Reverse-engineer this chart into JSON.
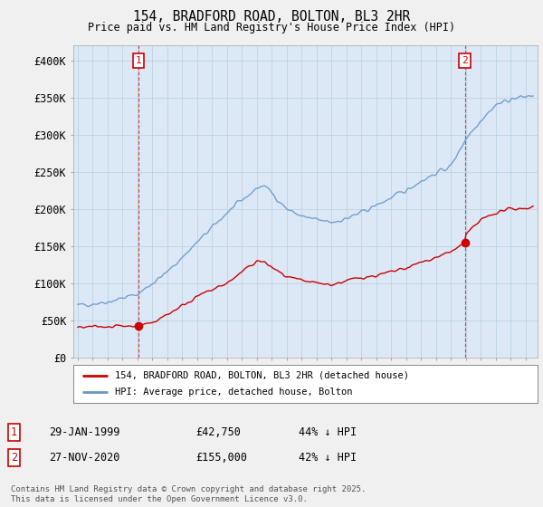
{
  "title1": "154, BRADFORD ROAD, BOLTON, BL3 2HR",
  "title2": "Price paid vs. HM Land Registry's House Price Index (HPI)",
  "ylim": [
    0,
    420000
  ],
  "yticks": [
    0,
    50000,
    100000,
    150000,
    200000,
    250000,
    300000,
    350000,
    400000
  ],
  "ytick_labels": [
    "£0",
    "£50K",
    "£100K",
    "£150K",
    "£200K",
    "£250K",
    "£300K",
    "£350K",
    "£400K"
  ],
  "bg_color": "#f0f0f0",
  "plot_bg_color": "#dce8f5",
  "grid_color": "#b8cfe0",
  "red_color": "#cc0000",
  "blue_color": "#6699cc",
  "marker1_date": 1999.08,
  "marker1_price": 42750,
  "marker2_date": 2020.92,
  "marker2_price": 155000,
  "legend_label_red": "154, BRADFORD ROAD, BOLTON, BL3 2HR (detached house)",
  "legend_label_blue": "HPI: Average price, detached house, Bolton",
  "annotation1_date": "29-JAN-1999",
  "annotation1_price": "£42,750",
  "annotation1_hpi": "44% ↓ HPI",
  "annotation2_date": "27-NOV-2020",
  "annotation2_price": "£155,000",
  "annotation2_hpi": "42% ↓ HPI",
  "footer": "Contains HM Land Registry data © Crown copyright and database right 2025.\nThis data is licensed under the Open Government Licence v3.0."
}
